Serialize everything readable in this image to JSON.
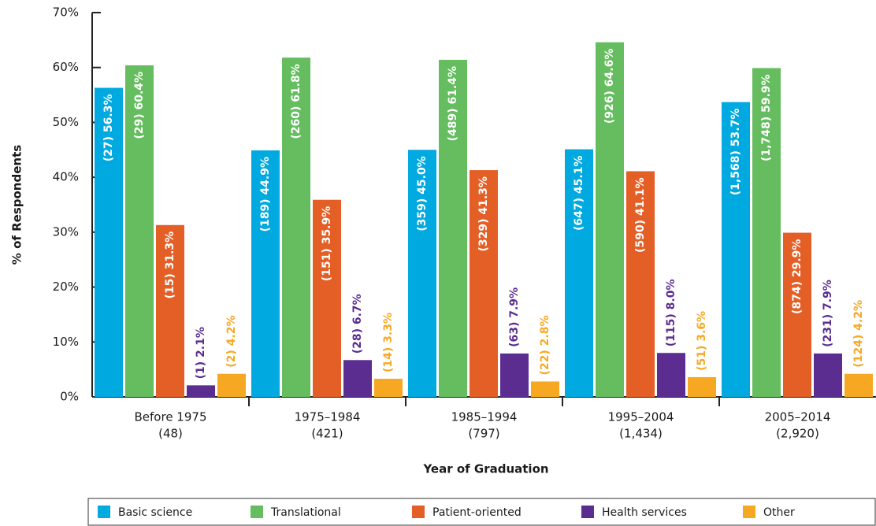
{
  "chart_data": {
    "type": "bar",
    "x_label": "Year of Graduation",
    "y_label": "% of Respondents",
    "categories": [
      [
        "Before 1975",
        "(48)"
      ],
      [
        "1975–1984",
        "(421)"
      ],
      [
        "1985–1994",
        "(797)"
      ],
      [
        "1995–2004",
        "(1,434)"
      ],
      [
        "2005–2014",
        "(2,920)"
      ]
    ],
    "ylim": [
      0,
      70
    ],
    "yticks": [
      {
        "value": 0,
        "label": "0%"
      },
      {
        "value": 10,
        "label": "10%"
      },
      {
        "value": 20,
        "label": "20%"
      },
      {
        "value": 30,
        "label": "30%"
      },
      {
        "value": 40,
        "label": "40%"
      },
      {
        "value": 50,
        "label": "50%"
      },
      {
        "value": 60,
        "label": "60%"
      },
      {
        "value": 70,
        "label": "70%"
      }
    ],
    "series": [
      {
        "name": "Basic science",
        "color": "#00a9e0",
        "values": [
          56.3,
          44.9,
          45.0,
          45.1,
          53.7
        ],
        "value_labels": [
          "(27) 56.3%",
          "(189) 44.9%",
          "(359) 45.0%",
          "(647) 45.1%",
          "(1,568) 53.7%"
        ]
      },
      {
        "name": "Translational",
        "color": "#65bd5f",
        "values": [
          60.4,
          61.8,
          61.4,
          64.6,
          59.9
        ],
        "value_labels": [
          "(29) 60.4%",
          "(260) 61.8%",
          "(489) 61.4%",
          "(926) 64.6%",
          "(1,748) 59.9%"
        ]
      },
      {
        "name": "Patient-oriented",
        "color": "#e35f26",
        "values": [
          31.3,
          35.9,
          41.3,
          41.1,
          29.9
        ],
        "value_labels": [
          "(15) 31.3%",
          "(151) 35.9%",
          "(329) 41.3%",
          "(590) 41.1%",
          "(874) 29.9%"
        ]
      },
      {
        "name": "Health services",
        "color": "#5b2d91",
        "values": [
          2.1,
          6.7,
          7.9,
          8.0,
          7.9
        ],
        "value_labels": [
          "(1) 2.1%",
          "(28) 6.7%",
          "(63) 7.9%",
          "(115) 8.0%",
          "(231) 7.9%"
        ]
      },
      {
        "name": "Other",
        "color": "#f7a823",
        "values": [
          4.2,
          3.3,
          2.8,
          3.6,
          4.2
        ],
        "value_labels": [
          "(2) 4.2%",
          "(14) 3.3%",
          "(22) 2.8%",
          "(51) 3.6%",
          "(124) 4.2%"
        ]
      }
    ]
  }
}
